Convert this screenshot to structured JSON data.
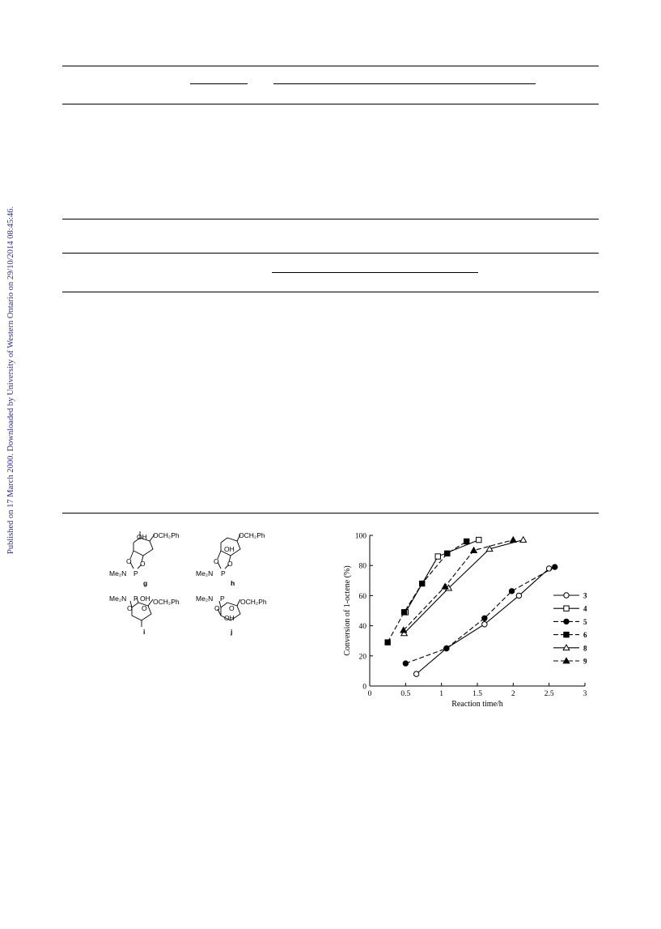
{
  "side_note": "Published on 17 March 2000. Downloaded by University of Western Ontario on 29/10/2014 08:45:46.",
  "structures": [
    {
      "label": "g",
      "substituents": [
        "OH",
        "OCH₂Ph",
        "Me₂N",
        "P",
        "O",
        "O"
      ]
    },
    {
      "label": "h",
      "substituents": [
        "OCH₂Ph",
        "OH",
        "Me₂N",
        "P",
        "O",
        "O"
      ]
    },
    {
      "label": "i",
      "substituents": [
        "Me₂N",
        "P",
        "OH",
        "OCH₂Ph",
        "O",
        "O"
      ]
    },
    {
      "label": "j",
      "substituents": [
        "Me₂N",
        "P",
        "OCH₂Ph",
        "OH",
        "O",
        "O"
      ]
    }
  ],
  "chart_data": {
    "type": "line",
    "xlabel": "Reaction time/h",
    "ylabel": "Conversion of 1-octene (%)",
    "xlim": [
      0,
      3
    ],
    "ylim": [
      0,
      100
    ],
    "xticks": [
      0,
      0.5,
      1,
      1.5,
      2,
      2.5,
      3
    ],
    "xtick_labels": [
      "0",
      "0.5",
      "1",
      "1.5",
      "2",
      "2.5",
      "3"
    ],
    "yticks": [
      0,
      20,
      40,
      60,
      80,
      100
    ],
    "ytick_labels": [
      "0",
      "20",
      "40",
      "60",
      "80",
      "100"
    ],
    "grid": false,
    "legend_position": "right",
    "series": [
      {
        "name": "3",
        "style": "solid",
        "marker": "circle-open",
        "x": [
          0.65,
          1.07,
          1.6,
          2.08,
          2.5
        ],
        "y": [
          8,
          25,
          41,
          60,
          78
        ]
      },
      {
        "name": "4",
        "style": "solid",
        "marker": "square-open",
        "x": [
          0.5,
          0.95,
          1.52
        ],
        "y": [
          49,
          86,
          97
        ]
      },
      {
        "name": "5",
        "style": "dashed",
        "marker": "circle-filled",
        "x": [
          0.5,
          1.07,
          1.6,
          1.98,
          2.58
        ],
        "y": [
          15,
          25,
          45,
          63,
          79
        ]
      },
      {
        "name": "6",
        "style": "dashed",
        "marker": "square-filled",
        "x": [
          0.25,
          0.48,
          0.73,
          1.08,
          1.35
        ],
        "y": [
          29,
          49,
          68,
          88,
          96
        ]
      },
      {
        "name": "8",
        "style": "solid",
        "marker": "triangle-open",
        "x": [
          0.48,
          1.1,
          1.67,
          2.14
        ],
        "y": [
          35,
          65,
          91,
          97
        ]
      },
      {
        "name": "9",
        "style": "dashed",
        "marker": "triangle-filled",
        "x": [
          0.47,
          1.05,
          1.45,
          2.0
        ],
        "y": [
          37,
          66,
          90,
          97
        ]
      }
    ]
  }
}
